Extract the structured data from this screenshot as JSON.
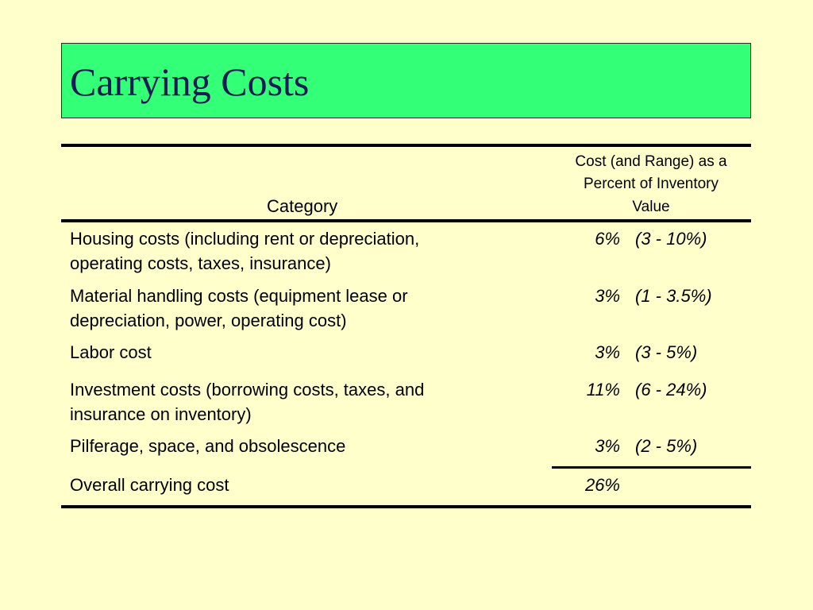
{
  "title": "Carrying Costs",
  "table": {
    "header": {
      "category": "Category",
      "value_line1": "Cost (and Range) as a",
      "value_line2": "Percent of Inventory",
      "value_line3": "Value"
    },
    "rows": [
      {
        "category_line1": "Housing costs (including rent or depreciation,",
        "category_line2": "operating costs, taxes, insurance)",
        "cost": "6%",
        "range": "(3 - 10%)"
      },
      {
        "category_line1": "Material handling costs (equipment lease or",
        "category_line2": "depreciation, power, operating cost)",
        "cost": "3%",
        "range": "(1 - 3.5%)"
      },
      {
        "category_line1": "Labor cost",
        "category_line2": "",
        "cost": "3%",
        "range": "(3 - 5%)"
      },
      {
        "category_line1": "Investment costs (borrowing costs, taxes, and",
        "category_line2": "insurance on inventory)",
        "cost": "11%",
        "range": "(6 - 24%)"
      },
      {
        "category_line1": "Pilferage, space, and obsolescence",
        "category_line2": "",
        "cost": "3%",
        "range": "(2 - 5%)"
      }
    ],
    "total": {
      "label": "Overall carrying cost",
      "cost": "26%"
    }
  }
}
